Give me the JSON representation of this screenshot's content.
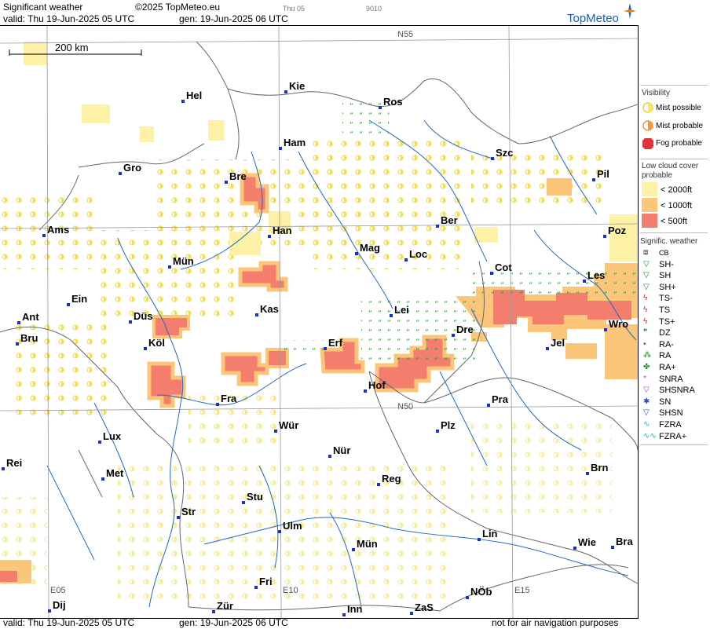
{
  "header": {
    "title": "Significant weather",
    "copyright": "©2025 TopMeteo.eu",
    "day_small": "Thu 05",
    "code_small": "9010",
    "valid": "valid:  Thu   19-Jun-2025  05 UTC",
    "gen": "gen: 19-Jun-2025 06 UTC",
    "brand": "TopMeteo"
  },
  "footer": {
    "valid": "valid:  Thu   19-Jun-2025  05 UTC",
    "gen": "gen: 19-Jun-2025 06 UTC",
    "note": "not for air navigation purposes"
  },
  "map": {
    "scale_label": "200 km",
    "grid_labels": [
      "N55",
      "N50",
      "E05",
      "E10",
      "E15"
    ],
    "cities": [
      {
        "name": "Kie"
      },
      {
        "name": "Hel"
      },
      {
        "name": "Ros"
      },
      {
        "name": "Ham"
      },
      {
        "name": "Szc"
      },
      {
        "name": "Gro"
      },
      {
        "name": "Bre"
      },
      {
        "name": "Pil"
      },
      {
        "name": "Ber"
      },
      {
        "name": "Ams"
      },
      {
        "name": "Han"
      },
      {
        "name": "Poz"
      },
      {
        "name": "Mag"
      },
      {
        "name": "Loc"
      },
      {
        "name": "Mün"
      },
      {
        "name": "Cot"
      },
      {
        "name": "Les"
      },
      {
        "name": "Ein"
      },
      {
        "name": "Kas"
      },
      {
        "name": "Lei"
      },
      {
        "name": "Ant"
      },
      {
        "name": "Düs"
      },
      {
        "name": "Wro"
      },
      {
        "name": "Dre"
      },
      {
        "name": "Bru"
      },
      {
        "name": "Köl"
      },
      {
        "name": "Erf"
      },
      {
        "name": "Jel"
      },
      {
        "name": "Hof"
      },
      {
        "name": "Fra"
      },
      {
        "name": "Pra"
      },
      {
        "name": "Lux"
      },
      {
        "name": "Wür"
      },
      {
        "name": "Plz"
      },
      {
        "name": "Rei"
      },
      {
        "name": "Nür"
      },
      {
        "name": "Met"
      },
      {
        "name": "Brn"
      },
      {
        "name": "Reg"
      },
      {
        "name": "Stu"
      },
      {
        "name": "Str"
      },
      {
        "name": "Lin"
      },
      {
        "name": "Ulm"
      },
      {
        "name": "Wie"
      },
      {
        "name": "Bra"
      },
      {
        "name": "Mün"
      },
      {
        "name": "Fri"
      },
      {
        "name": "NÖb"
      },
      {
        "name": "Dij"
      },
      {
        "name": "Zür"
      },
      {
        "name": "Inn"
      },
      {
        "name": "ZaS"
      }
    ]
  },
  "legend": {
    "visibility_title": "Visibility",
    "visibility": [
      "Mist possible",
      "Mist probable",
      "Fog probable"
    ],
    "lowcloud_title": "Low cloud cover probable",
    "lowcloud": [
      "< 2000ft",
      "< 1000ft",
      "<  500ft"
    ],
    "sigwx_title": "Signific. weather",
    "sigwx": [
      "CB",
      "SH-",
      "SH",
      "SH+",
      "TS-",
      "TS",
      "TS+",
      "DZ",
      "RA-",
      "RA",
      "RA+",
      "SNRA",
      "SHSNRA",
      "SN",
      "SHSN",
      "FZRA",
      "FZRA+"
    ],
    "colors": {
      "mist_possible": "#f5e663",
      "mist_probable": "#f59a3a",
      "fog_probable": "#e0323a",
      "cloud_2000": "#fdf1a8",
      "cloud_1000": "#fbc67a",
      "cloud_500": "#f47e6e",
      "shower_green": "#1f8a2a",
      "thunder_red": "#d03030",
      "snow_purple": "#c040c0",
      "snow_blue": "#2050d0",
      "freezing_cyan": "#20b0e0"
    }
  }
}
